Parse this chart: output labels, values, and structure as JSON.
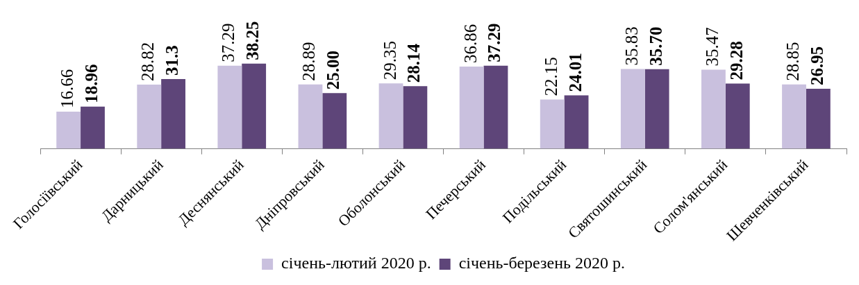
{
  "chart_data": {
    "type": "bar",
    "categories": [
      "Голосіївський",
      "Дарницький",
      "Деснянський",
      "Дніпровський",
      "Оболонський",
      "Печерський",
      "Подільський",
      "Святошинський",
      "Солом'янський",
      "Шевченківський"
    ],
    "series": [
      {
        "name": "січень-лютий 2020 р.",
        "color": "#c9c0de",
        "values": [
          16.66,
          28.82,
          37.29,
          28.89,
          29.35,
          36.86,
          22.15,
          35.83,
          35.47,
          28.85
        ],
        "value_labels": [
          "16.66",
          "28.82",
          "37.29",
          "28.89",
          "29.35",
          "36.86",
          "22.15",
          "35.83",
          "35.47",
          "28.85"
        ]
      },
      {
        "name": "січень-березень 2020 р.",
        "color": "#5e4579",
        "values": [
          18.96,
          31.3,
          38.25,
          25.0,
          28.14,
          37.29,
          24.01,
          35.7,
          29.28,
          26.95
        ],
        "value_labels": [
          "18.96",
          "31.3",
          "38.25",
          "25.00",
          "28.14",
          "37.29",
          "24.01",
          "35.70",
          "29.28",
          "26.95"
        ]
      }
    ],
    "legend": "bottom",
    "grid": false
  }
}
